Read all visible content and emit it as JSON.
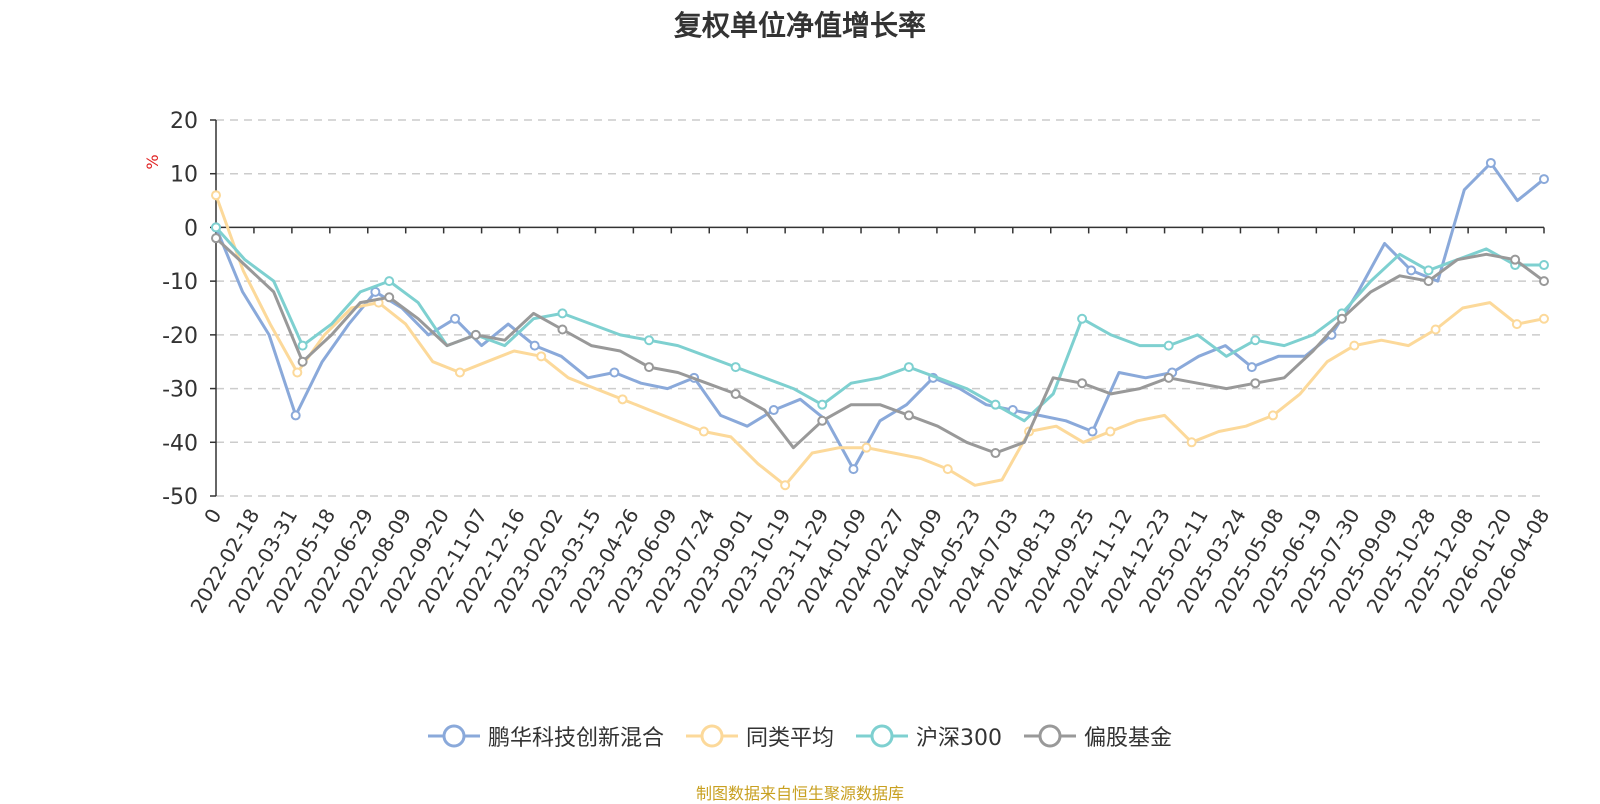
{
  "chart_data": {
    "type": "line",
    "title": "复权单位净值增长率",
    "ylabel": "%",
    "xlabel": "",
    "ylim": [
      -50,
      20
    ],
    "yticks": [
      20,
      10,
      0,
      -10,
      -20,
      -30,
      -40,
      -50
    ],
    "x_tick_labels": [
      "0",
      "2022-02-18",
      "2022-03-31",
      "2022-05-18",
      "2022-06-29",
      "2022-08-09",
      "2022-09-20",
      "2022-11-07",
      "2022-12-16",
      "2023-02-02",
      "2023-03-15",
      "2023-04-26",
      "2023-06-09",
      "2023-07-24",
      "2023-09-01",
      "2023-10-19",
      "2023-11-29",
      "2024-01-09",
      "2024-02-27",
      "2024-04-09",
      "2024-05-23",
      "2024-07-03",
      "2024-08-13",
      "2024-09-25",
      "2024-11-12",
      "2024-12-23",
      "2025-02-11",
      "2025-03-24",
      "2025-05-08",
      "2025-06-19",
      "2025-07-30",
      "2025-09-09",
      "2025-10-28",
      "2025-12-08",
      "2026-01-20",
      "2026-04-08"
    ],
    "series": [
      {
        "name": "鹏华科技创新混合",
        "color": "#8aa9da",
        "values": [
          0,
          -12,
          -20,
          -35,
          -25,
          -18,
          -12,
          -15,
          -20,
          -17,
          -22,
          -18,
          -22,
          -24,
          -28,
          -27,
          -29,
          -30,
          -28,
          -35,
          -37,
          -34,
          -32,
          -36,
          -45,
          -36,
          -33,
          -28,
          -30,
          -33,
          -34,
          -35,
          -36,
          -38,
          -27,
          -28,
          -27,
          -24,
          -22,
          -26,
          -24,
          -24,
          -20,
          -12,
          -3,
          -8,
          -10,
          7,
          12,
          5,
          9
        ]
      },
      {
        "name": "同类平均",
        "color": "#fcd99a",
        "values": [
          6,
          -8,
          -18,
          -27,
          -20,
          -15,
          -14,
          -18,
          -25,
          -27,
          -25,
          -23,
          -24,
          -28,
          -30,
          -32,
          -34,
          -36,
          -38,
          -39,
          -44,
          -48,
          -42,
          -41,
          -41,
          -42,
          -43,
          -45,
          -48,
          -47,
          -38,
          -37,
          -40,
          -38,
          -36,
          -35,
          -40,
          -38,
          -37,
          -35,
          -31,
          -25,
          -22,
          -21,
          -22,
          -19,
          -15,
          -14,
          -18,
          -17
        ]
      },
      {
        "name": "沪深300",
        "color": "#7ed0d0",
        "values": [
          0,
          -6,
          -10,
          -22,
          -18,
          -12,
          -10,
          -14,
          -22,
          -20,
          -22,
          -17,
          -16,
          -18,
          -20,
          -21,
          -22,
          -24,
          -26,
          -28,
          -30,
          -33,
          -29,
          -28,
          -26,
          -28,
          -30,
          -33,
          -36,
          -31,
          -17,
          -20,
          -22,
          -22,
          -20,
          -24,
          -21,
          -22,
          -20,
          -16,
          -10,
          -5,
          -8,
          -6,
          -4,
          -7,
          -7
        ]
      },
      {
        "name": "偏股基金",
        "color": "#999999",
        "values": [
          -2,
          -7,
          -12,
          -25,
          -20,
          -14,
          -13,
          -17,
          -22,
          -20,
          -21,
          -16,
          -19,
          -22,
          -23,
          -26,
          -27,
          -29,
          -31,
          -34,
          -41,
          -36,
          -33,
          -33,
          -35,
          -37,
          -40,
          -42,
          -40,
          -28,
          -29,
          -31,
          -30,
          -28,
          -29,
          -30,
          -29,
          -28,
          -23,
          -17,
          -12,
          -9,
          -10,
          -6,
          -5,
          -6,
          -10
        ]
      }
    ]
  },
  "source": "制图数据来自恒生聚源数据库"
}
